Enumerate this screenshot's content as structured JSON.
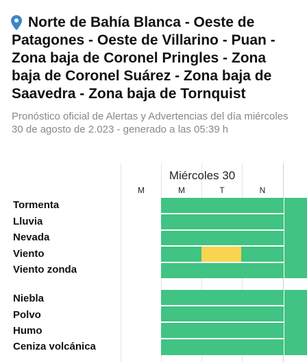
{
  "header": {
    "title": "Norte de Bahía Blanca - Oeste de Patagones - Oeste de Villarino - Puan - Zona baja de Coronel Pringles - Zona baja de Coronel Suárez - Zona baja de Saavedra - Zona baja de Tornquist",
    "subtitle": "Pronóstico oficial de Alertas y Advertencias del día miércoles 30 de agosto de 2.023 - generado a las 05:39 h"
  },
  "forecast": {
    "day_label": "Miércoles 30",
    "slots": [
      "M",
      "M",
      "T",
      "N"
    ],
    "groups": [
      {
        "rows": [
          {
            "label": "Tormenta",
            "levels": [
              "",
              "green",
              "green",
              "green"
            ]
          },
          {
            "label": "Lluvia",
            "levels": [
              "",
              "green",
              "green",
              "green"
            ]
          },
          {
            "label": "Nevada",
            "levels": [
              "",
              "green",
              "green",
              "green"
            ]
          },
          {
            "label": "Viento",
            "levels": [
              "",
              "green",
              "yellow",
              "green"
            ]
          },
          {
            "label": "Viento zonda",
            "levels": [
              "",
              "green",
              "green",
              "green"
            ]
          }
        ]
      },
      {
        "rows": [
          {
            "label": "Niebla",
            "levels": [
              "",
              "green",
              "green",
              "green"
            ]
          },
          {
            "label": "Polvo",
            "levels": [
              "",
              "green",
              "green",
              "green"
            ]
          },
          {
            "label": "Humo",
            "levels": [
              "",
              "green",
              "green",
              "green"
            ]
          },
          {
            "label": "Ceniza volcánica",
            "levels": [
              "",
              "green",
              "green",
              "green"
            ]
          }
        ]
      }
    ]
  },
  "colors": {
    "green": "#40c383",
    "yellow": "#f8d451",
    "pin": "#3a86c8"
  },
  "icons": {
    "location": "map-pin-icon"
  }
}
